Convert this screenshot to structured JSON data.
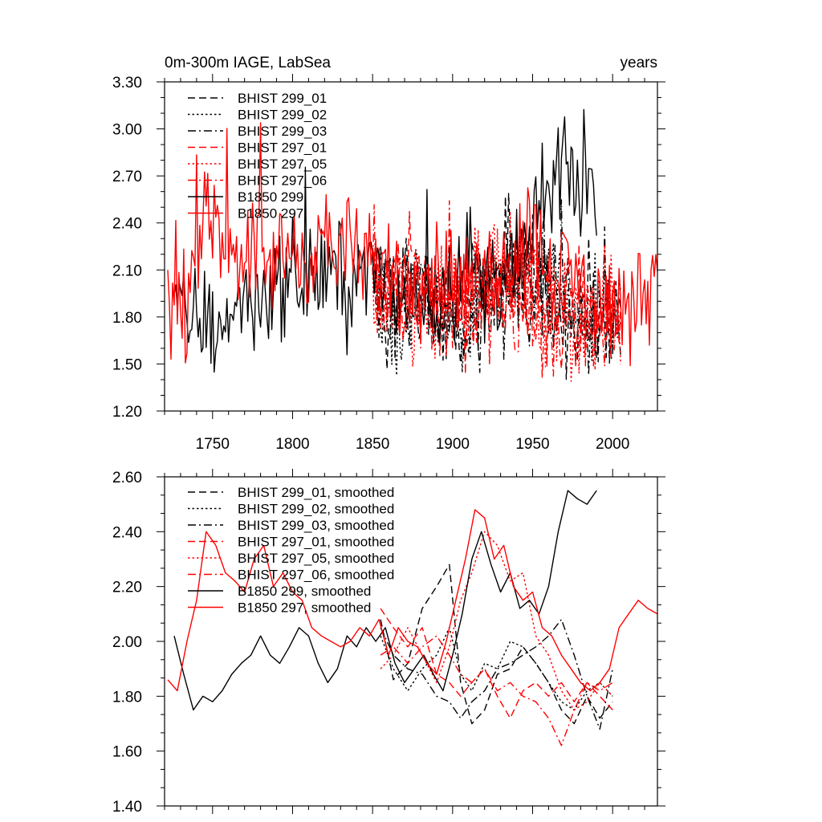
{
  "chart_data": [
    {
      "type": "line",
      "title": "0m-300m IAGE, LabSea",
      "units": "years",
      "xlabel": "",
      "ylabel": "",
      "xlim": [
        1720,
        2028
      ],
      "ylim": [
        1.2,
        3.3
      ],
      "x_ticks": [
        1750,
        1800,
        1850,
        1900,
        1950,
        2000
      ],
      "x_tick_labels": [
        "1750",
        "1800",
        "1850",
        "1900",
        "1950",
        "2000"
      ],
      "y_ticks": [
        1.2,
        1.5,
        1.8,
        2.1,
        2.4,
        2.7,
        3.0,
        3.3
      ],
      "y_tick_labels": [
        "1.20",
        "1.50",
        "1.80",
        "2.10",
        "2.40",
        "2.70",
        "3.00",
        "3.30"
      ],
      "legend_position": "top-left",
      "series": [
        {
          "name": "BHIST 299_01",
          "color": "#000000",
          "style": "dash",
          "x_start": 1850,
          "x_end": 2005,
          "base": [
            2.05,
            1.82,
            1.95,
            2.02,
            1.9,
            1.98,
            1.75,
            1.95,
            1.55,
            1.88,
            2.02,
            1.98,
            2.22,
            2.05,
            2.18,
            2.0,
            1.78,
            1.8,
            1.72,
            1.78,
            1.82,
            1.85,
            1.75
          ]
        },
        {
          "name": "BHIST 299_02",
          "color": "#000000",
          "style": "dot",
          "x_start": 1850,
          "x_end": 2005,
          "base": [
            2.1,
            1.92,
            1.78,
            1.88,
            1.98,
            2.08,
            1.85,
            1.92,
            1.78,
            1.9,
            2.0,
            1.98,
            1.92,
            1.92,
            2.1,
            2.02,
            2.05,
            1.95,
            1.78,
            1.72,
            1.88,
            1.92,
            1.82
          ]
        },
        {
          "name": "BHIST 299_03",
          "color": "#000000",
          "style": "dashdot",
          "x_start": 1850,
          "x_end": 2005,
          "base": [
            2.08,
            2.0,
            1.92,
            1.85,
            1.95,
            1.98,
            1.88,
            1.85,
            1.8,
            1.72,
            1.95,
            1.92,
            1.98,
            2.05,
            1.95,
            2.08,
            2.0,
            1.9,
            1.72,
            1.65,
            1.82,
            1.85,
            1.78
          ]
        },
        {
          "name": "BHIST 297_01",
          "color": "#ff0000",
          "style": "dash",
          "x_start": 1850,
          "x_end": 2005,
          "base": [
            2.15,
            2.0,
            2.08,
            1.92,
            2.02,
            1.88,
            1.85,
            1.98,
            1.82,
            1.88,
            1.95,
            1.95,
            1.92,
            1.85,
            1.95,
            1.78,
            1.9,
            1.82,
            1.82,
            1.82,
            1.75,
            1.85,
            1.78
          ]
        },
        {
          "name": "BHIST 297_05",
          "color": "#ff0000",
          "style": "dot",
          "x_start": 1850,
          "x_end": 2005,
          "base": [
            1.92,
            1.95,
            2.02,
            1.88,
            1.8,
            1.85,
            1.82,
            1.92,
            1.98,
            2.15,
            2.12,
            2.25,
            2.1,
            2.08,
            1.98,
            1.88,
            1.82,
            1.85,
            1.75,
            1.8,
            1.82,
            1.85,
            1.72
          ]
        },
        {
          "name": "BHIST 297_06",
          "color": "#ff0000",
          "style": "dashdot",
          "x_start": 1850,
          "x_end": 2005,
          "base": [
            1.95,
            1.98,
            1.88,
            1.95,
            2.02,
            2.05,
            1.92,
            1.85,
            1.92,
            1.82,
            1.85,
            1.88,
            1.8,
            1.78,
            1.82,
            1.75,
            1.78,
            1.85,
            1.72,
            1.75,
            1.8,
            1.78,
            1.82
          ]
        },
        {
          "name": "B1850 299",
          "color": "#000000",
          "style": "solid",
          "x_start": 1726,
          "x_end": 1990,
          "base": [
            1.82,
            1.8,
            1.78,
            1.72,
            1.8,
            1.88,
            1.92,
            1.95,
            2.02,
            2.05,
            1.98,
            2.08,
            2.12,
            1.98,
            2.05,
            2.12,
            2.02,
            1.9,
            1.95,
            1.98,
            1.85,
            2.02,
            2.05,
            2.22,
            1.98,
            2.02,
            2.15,
            2.05,
            2.42,
            2.55,
            2.68,
            2.72,
            2.55,
            2.72
          ]
        },
        {
          "name": "B1850 297",
          "color": "#ff0000",
          "style": "solid",
          "x_start": 1722,
          "x_end": 2028,
          "base": [
            1.88,
            1.75,
            2.2,
            2.4,
            2.35,
            2.28,
            2.18,
            2.2,
            2.15,
            2.25,
            2.18,
            2.3,
            2.25,
            2.22,
            2.18,
            2.08,
            2.15,
            2.02,
            2.08,
            2.05,
            2.1,
            2.05,
            1.98,
            2.05,
            2.15,
            2.22,
            2.25,
            2.3,
            2.12,
            2.1,
            2.05,
            1.92,
            1.85,
            1.88,
            1.88,
            2.0,
            2.15
          ]
        }
      ]
    },
    {
      "type": "line",
      "title": "",
      "xlim": [
        1720,
        2028
      ],
      "ylim": [
        1.4,
        2.6
      ],
      "y_ticks": [
        1.4,
        1.6,
        1.8,
        2.0,
        2.2,
        2.4,
        2.6
      ],
      "y_tick_labels": [
        "1.40",
        "1.60",
        "1.80",
        "2.00",
        "2.20",
        "2.40",
        "2.60"
      ],
      "legend_position": "top-left",
      "series": [
        {
          "name": "BHIST 299_01, smoothed",
          "color": "#000000",
          "style": "dash",
          "x": [
            1855,
            1863,
            1872,
            1881,
            1890,
            1898,
            1905,
            1912,
            1920,
            1928,
            1936,
            1944,
            1952,
            1960,
            1968,
            1976,
            1984,
            1992,
            2000
          ],
          "y": [
            2.08,
            1.86,
            1.92,
            2.12,
            2.2,
            2.28,
            1.85,
            1.7,
            1.75,
            1.88,
            1.9,
            1.98,
            1.92,
            1.85,
            1.75,
            1.7,
            1.8,
            1.72,
            1.78
          ]
        },
        {
          "name": "BHIST 299_02, smoothed",
          "color": "#000000",
          "style": "dot",
          "x": [
            1855,
            1863,
            1872,
            1881,
            1890,
            1898,
            1905,
            1912,
            1920,
            1928,
            1936,
            1944,
            1952,
            1960,
            1968,
            1976,
            1984,
            1992,
            2000
          ],
          "y": [
            2.02,
            1.9,
            1.82,
            1.9,
            1.95,
            2.05,
            1.88,
            1.82,
            1.92,
            1.9,
            2.0,
            1.98,
            1.92,
            1.85,
            1.78,
            1.75,
            1.82,
            1.85,
            1.8
          ]
        },
        {
          "name": "BHIST 299_03, smoothed",
          "color": "#000000",
          "style": "dashdot",
          "x": [
            1855,
            1863,
            1872,
            1881,
            1890,
            1898,
            1905,
            1912,
            1920,
            1928,
            1936,
            1944,
            1952,
            1960,
            1968,
            1976,
            1984,
            1992,
            2000
          ],
          "y": [
            2.05,
            1.95,
            1.9,
            1.88,
            1.8,
            1.78,
            1.72,
            1.78,
            1.82,
            1.9,
            1.92,
            1.95,
            1.98,
            2.02,
            2.08,
            1.95,
            1.8,
            1.68,
            1.9
          ]
        },
        {
          "name": "BHIST 297_01, smoothed",
          "color": "#ff0000",
          "style": "dash",
          "x": [
            1855,
            1863,
            1872,
            1881,
            1890,
            1898,
            1905,
            1912,
            1920,
            1928,
            1936,
            1944,
            1952,
            1960,
            1968,
            1976,
            1984,
            1992,
            2000
          ],
          "y": [
            2.12,
            2.05,
            1.98,
            2.05,
            1.88,
            1.85,
            1.8,
            1.85,
            1.9,
            1.8,
            1.72,
            1.82,
            1.85,
            1.8,
            1.85,
            1.78,
            1.85,
            1.8,
            1.75
          ]
        },
        {
          "name": "BHIST 297_05, smoothed",
          "color": "#ff0000",
          "style": "dot",
          "x": [
            1855,
            1863,
            1872,
            1881,
            1890,
            1898,
            1905,
            1912,
            1920,
            1928,
            1936,
            1944,
            1952,
            1960,
            1968,
            1976,
            1984,
            1992,
            2000
          ],
          "y": [
            1.9,
            1.95,
            2.05,
            1.95,
            1.85,
            1.98,
            2.15,
            2.25,
            2.4,
            2.35,
            2.22,
            2.25,
            2.02,
            1.95,
            1.82,
            1.75,
            1.78,
            1.85,
            1.8
          ]
        },
        {
          "name": "BHIST 297_06, smoothed",
          "color": "#ff0000",
          "style": "dashdot",
          "x": [
            1855,
            1863,
            1872,
            1881,
            1890,
            1898,
            1905,
            1912,
            1920,
            1928,
            1936,
            1944,
            1952,
            1960,
            1968,
            1976,
            1984,
            1992,
            2000
          ],
          "y": [
            1.95,
            1.98,
            1.92,
            1.98,
            2.02,
            1.95,
            1.88,
            1.85,
            1.9,
            1.82,
            1.85,
            1.8,
            1.78,
            1.72,
            1.62,
            1.75,
            1.85,
            1.82,
            1.85
          ]
        },
        {
          "name": "B1850 299, smoothed",
          "color": "#000000",
          "style": "solid",
          "x": [
            1726,
            1732,
            1738,
            1744,
            1750,
            1756,
            1762,
            1768,
            1774,
            1780,
            1786,
            1792,
            1798,
            1804,
            1810,
            1816,
            1822,
            1828,
            1834,
            1840,
            1846,
            1852,
            1858,
            1864,
            1870,
            1876,
            1882,
            1888,
            1894,
            1900,
            1906,
            1912,
            1918,
            1924,
            1930,
            1936,
            1942,
            1948,
            1954,
            1960,
            1966,
            1972,
            1978,
            1984,
            1990
          ],
          "y": [
            2.02,
            1.88,
            1.75,
            1.8,
            1.78,
            1.82,
            1.88,
            1.92,
            1.95,
            2.02,
            1.95,
            1.92,
            1.98,
            2.05,
            2.02,
            1.92,
            1.85,
            1.9,
            2.02,
            1.98,
            2.05,
            2.0,
            2.05,
            1.92,
            1.85,
            1.9,
            1.95,
            1.88,
            1.82,
            1.95,
            2.1,
            2.3,
            2.4,
            2.28,
            2.18,
            2.25,
            2.12,
            2.15,
            2.1,
            2.2,
            2.4,
            2.55,
            2.52,
            2.5,
            2.55
          ]
        },
        {
          "name": "B1850 297, smoothed",
          "color": "#ff0000",
          "style": "solid",
          "x": [
            1722,
            1728,
            1734,
            1740,
            1746,
            1752,
            1758,
            1764,
            1770,
            1776,
            1782,
            1788,
            1794,
            1800,
            1806,
            1812,
            1818,
            1824,
            1830,
            1836,
            1842,
            1848,
            1854,
            1860,
            1866,
            1872,
            1878,
            1884,
            1890,
            1896,
            1902,
            1908,
            1914,
            1920,
            1926,
            1932,
            1938,
            1944,
            1950,
            1956,
            1962,
            1968,
            1974,
            1980,
            1986,
            1992,
            1998,
            2004,
            2010,
            2016,
            2022,
            2028
          ],
          "y": [
            1.86,
            1.82,
            2.0,
            2.15,
            2.4,
            2.35,
            2.25,
            2.22,
            2.18,
            2.3,
            2.35,
            2.2,
            2.25,
            2.18,
            2.15,
            2.05,
            2.02,
            2.0,
            1.98,
            2.0,
            2.05,
            2.02,
            2.08,
            1.95,
            2.05,
            2.0,
            1.98,
            1.92,
            1.88,
            2.0,
            2.15,
            2.3,
            2.48,
            2.45,
            2.3,
            2.35,
            2.2,
            2.15,
            2.18,
            2.05,
            2.02,
            1.95,
            1.9,
            1.85,
            1.82,
            1.85,
            1.9,
            2.05,
            2.1,
            2.15,
            2.12,
            2.1
          ]
        }
      ]
    }
  ]
}
